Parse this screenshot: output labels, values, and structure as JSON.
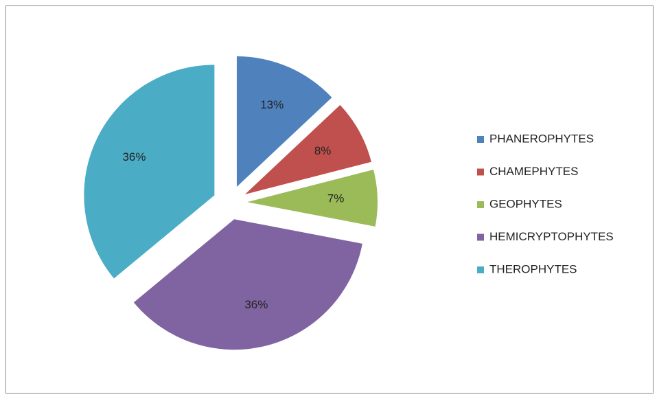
{
  "chart_data": {
    "type": "pie",
    "categories": [
      "PHANEROPHYTES",
      "CHAMEPHYTES",
      "GEOPHYTES",
      "HEMICRYPTOPHYTES",
      "THEROPHYTES"
    ],
    "values": [
      13,
      8,
      7,
      36,
      36
    ],
    "value_labels": [
      "13%",
      "8%",
      "7%",
      "36%",
      "36%"
    ],
    "colors": [
      "#4f81bd",
      "#c0504d",
      "#9bbb59",
      "#8064a2",
      "#4bacc6"
    ],
    "legend": "right"
  }
}
